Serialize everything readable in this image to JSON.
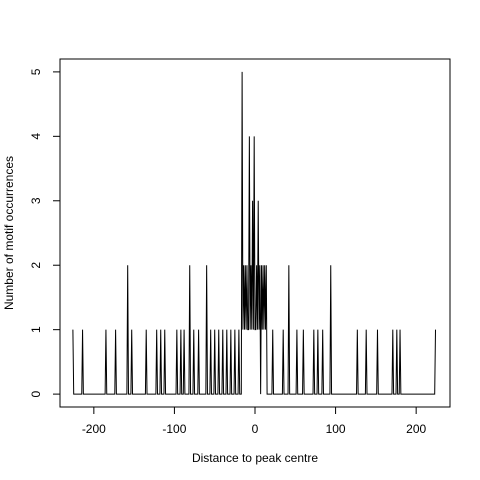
{
  "chart_data": {
    "type": "line",
    "xlabel": "Distance to peak centre",
    "ylabel": "Number of motif occurrences",
    "x": [
      -226,
      -225,
      -215,
      -214,
      -213,
      -186,
      -185,
      -184,
      -174,
      -173,
      -172,
      -159,
      -158,
      -157,
      -154,
      -153,
      -152,
      -136,
      -135,
      -134,
      -123,
      -122,
      -121,
      -118,
      -117,
      -116,
      -113,
      -112,
      -111,
      -98,
      -97,
      -96,
      -93,
      -92,
      -91,
      -89,
      -88,
      -87,
      -82,
      -81,
      -80,
      -77,
      -76,
      -75,
      -71,
      -70,
      -69,
      -61,
      -60,
      -59,
      -56,
      -55,
      -54,
      -51,
      -50,
      -49,
      -46,
      -45,
      -44,
      -41,
      -40,
      -39,
      -36,
      -35,
      -34,
      -31,
      -30,
      -29,
      -26,
      -25,
      -24,
      -21,
      -20,
      -19,
      -17,
      -16,
      -15,
      -14,
      -13,
      -12,
      -11,
      -10,
      -9,
      -8,
      -7,
      -6,
      -5,
      -4,
      -3,
      -2,
      -1,
      0,
      1,
      2,
      3,
      4,
      5,
      6,
      7,
      8,
      9,
      10,
      11,
      12,
      13,
      14,
      15,
      21,
      22,
      23,
      34,
      35,
      36,
      41,
      42,
      43,
      51,
      52,
      53,
      59,
      60,
      61,
      72,
      73,
      74,
      77,
      78,
      79,
      83,
      84,
      85,
      93,
      94,
      95,
      126,
      127,
      128,
      137,
      138,
      139,
      151,
      152,
      153,
      170,
      171,
      172,
      175,
      176,
      177,
      179,
      180,
      181,
      223,
      224
    ],
    "values": [
      1,
      0,
      0,
      1,
      0,
      0,
      1,
      0,
      0,
      1,
      0,
      0,
      2,
      0,
      0,
      1,
      0,
      0,
      1,
      0,
      0,
      1,
      0,
      0,
      1,
      0,
      0,
      1,
      0,
      0,
      1,
      0,
      0,
      1,
      0,
      0,
      1,
      0,
      0,
      2,
      0,
      0,
      1,
      0,
      0,
      1,
      0,
      0,
      2,
      0,
      0,
      1,
      0,
      0,
      1,
      0,
      0,
      1,
      0,
      0,
      1,
      0,
      0,
      1,
      0,
      0,
      1,
      0,
      0,
      1,
      0,
      0,
      1,
      0,
      0,
      5,
      1,
      2,
      1,
      2,
      1,
      2,
      1,
      1,
      4,
      1,
      2,
      1,
      3,
      1,
      4,
      1,
      1,
      2,
      1,
      3,
      1,
      2,
      0,
      2,
      1,
      2,
      1,
      2,
      1,
      2,
      0,
      0,
      1,
      0,
      0,
      1,
      0,
      0,
      2,
      0,
      0,
      1,
      0,
      0,
      1,
      0,
      0,
      1,
      0,
      0,
      1,
      0,
      0,
      1,
      0,
      0,
      2,
      0,
      0,
      1,
      0,
      0,
      1,
      0,
      0,
      1,
      0,
      0,
      1,
      0,
      0,
      1,
      0,
      0,
      1,
      0,
      0,
      1
    ],
    "color": "#000000",
    "xlim": [
      -242,
      242
    ],
    "xticks": [
      -200,
      -100,
      0,
      100,
      200
    ],
    "ylim": [
      -0.2,
      5.2
    ],
    "yticks": [
      0,
      1,
      2,
      3,
      4,
      5
    ]
  }
}
